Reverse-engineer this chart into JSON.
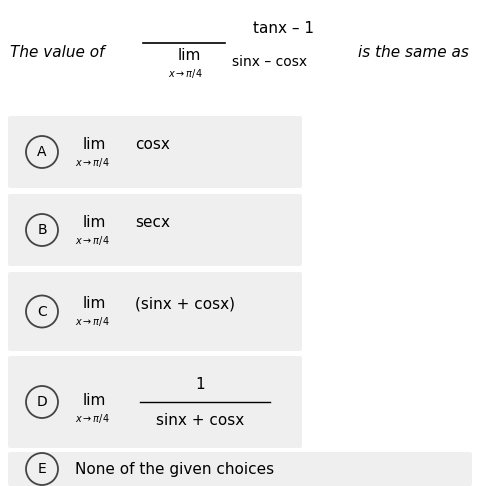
{
  "bg_color": "#ffffff",
  "option_bg_color": "#efefef",
  "text_color": "#000000",
  "circle_edge_color": "#444444",
  "figsize": [
    4.89,
    4.86
  ],
  "dpi": 100,
  "options": [
    {
      "label": "A",
      "expr_text": "cosx",
      "has_fraction": false
    },
    {
      "label": "B",
      "expr_text": "secx",
      "has_fraction": false
    },
    {
      "label": "C",
      "expr_text": "(sinx + cosx)",
      "has_fraction": false
    },
    {
      "label": "D",
      "expr_num": "1",
      "expr_denom": "sinx + cosx",
      "has_fraction": true
    },
    {
      "label": "E",
      "expr_text": "None of the given choices",
      "has_fraction": false,
      "no_lim": true
    }
  ]
}
